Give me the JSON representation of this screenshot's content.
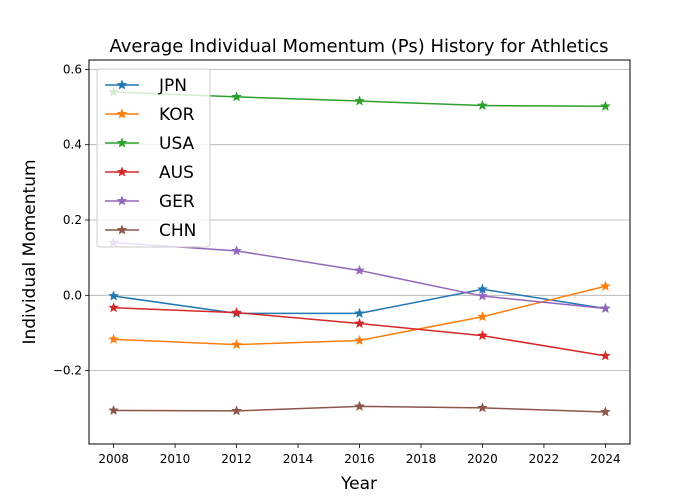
{
  "chart_data": {
    "type": "line",
    "title": "Average Individual Momentum (Ps) History for Athletics",
    "xlabel": "Year",
    "ylabel": "Individual Momentum",
    "x": [
      2008,
      2012,
      2016,
      2020,
      2024
    ],
    "xlim": [
      2007.2,
      2024.8
    ],
    "ylim": [
      -0.395,
      0.625
    ],
    "xticks": [
      2008,
      2010,
      2012,
      2014,
      2016,
      2018,
      2020,
      2022,
      2024
    ],
    "yticks": [
      -0.2,
      0.0,
      0.2,
      0.4,
      0.6
    ],
    "ytick_labels": [
      "−0.2",
      "0.0",
      "0.2",
      "0.4",
      "0.6"
    ],
    "grid": "horizontal",
    "legend_position": "top-left",
    "marker": "star",
    "series": [
      {
        "name": "JPN",
        "color": "#1f77b4",
        "values": [
          -0.002,
          -0.048,
          -0.048,
          0.016,
          -0.035
        ]
      },
      {
        "name": "KOR",
        "color": "#ff7f0e",
        "values": [
          -0.117,
          -0.131,
          -0.12,
          -0.057,
          0.024
        ]
      },
      {
        "name": "USA",
        "color": "#2ca02c",
        "values": [
          0.54,
          0.527,
          0.516,
          0.504,
          0.502
        ]
      },
      {
        "name": "AUS",
        "color": "#d62728",
        "values": [
          -0.033,
          -0.046,
          -0.075,
          -0.107,
          -0.161
        ]
      },
      {
        "name": "GER",
        "color": "#9467bd",
        "values": [
          0.14,
          0.118,
          0.066,
          -0.002,
          -0.035
        ]
      },
      {
        "name": "CHN",
        "color": "#8c564b",
        "values": [
          -0.306,
          -0.307,
          -0.295,
          -0.299,
          -0.31
        ]
      }
    ]
  }
}
